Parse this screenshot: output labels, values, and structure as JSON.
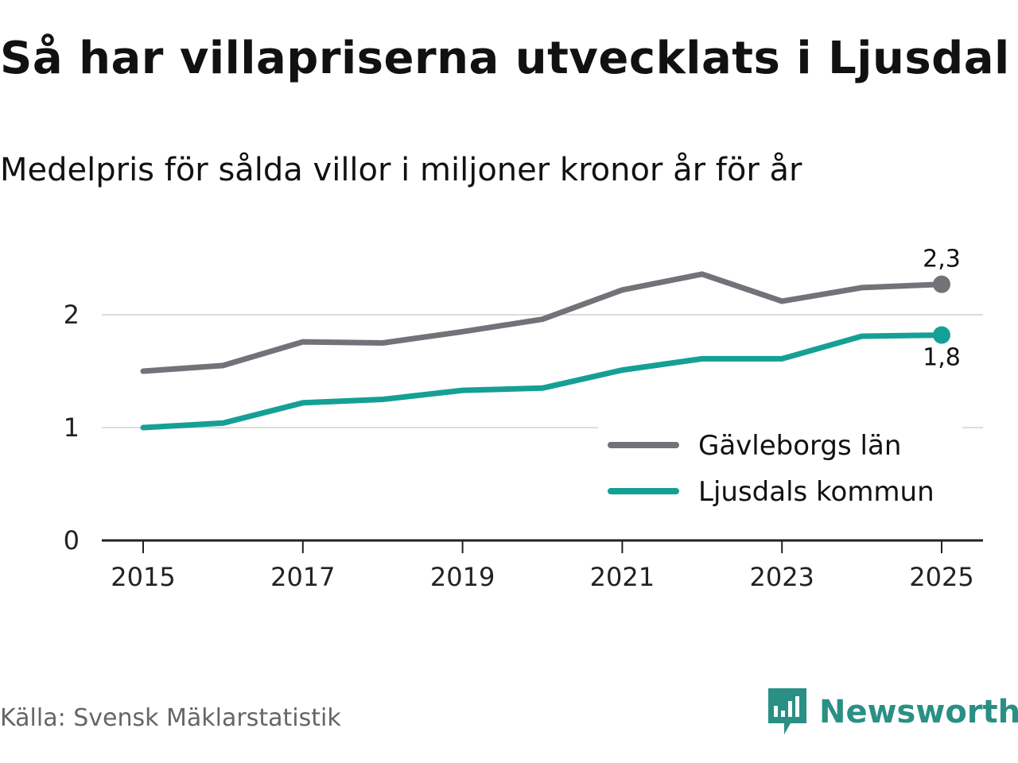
{
  "title": "Så har villapriserna utvecklats i Ljusdal",
  "subtitle": "Medelpris för sålda villor i miljoner kronor år för år",
  "source": "Källa: Svensk Mäklarstatistik",
  "brand": {
    "name": "Newsworthy",
    "icon": "newsworthy-logo-icon",
    "color": "#2a8f84"
  },
  "chart_data": {
    "type": "line",
    "title": "Så har villapriserna utvecklats i Ljusdal",
    "subtitle": "Medelpris för sålda villor i miljoner kronor år för år",
    "xlabel": "",
    "ylabel": "",
    "x": [
      2015,
      2016,
      2017,
      2018,
      2019,
      2020,
      2021,
      2022,
      2023,
      2024,
      2025
    ],
    "x_ticks": [
      "2015",
      "2017",
      "2019",
      "2021",
      "2023",
      "2025"
    ],
    "y_ticks": [
      "0",
      "1",
      "2"
    ],
    "ylim": [
      0,
      2.6
    ],
    "xlim": [
      2014.5,
      2025.5
    ],
    "grid": true,
    "legend_position": "bottom-right",
    "series": [
      {
        "name": "Gävleborgs län",
        "color": "#737278",
        "values": [
          1.5,
          1.55,
          1.76,
          1.75,
          1.85,
          1.96,
          2.22,
          2.36,
          2.12,
          2.24,
          2.27
        ],
        "end_label": "2,3"
      },
      {
        "name": "Ljusdals kommun",
        "color": "#15a095",
        "values": [
          1.0,
          1.04,
          1.22,
          1.25,
          1.33,
          1.35,
          1.51,
          1.61,
          1.61,
          1.81,
          1.82
        ],
        "end_label": "1,8"
      }
    ]
  }
}
